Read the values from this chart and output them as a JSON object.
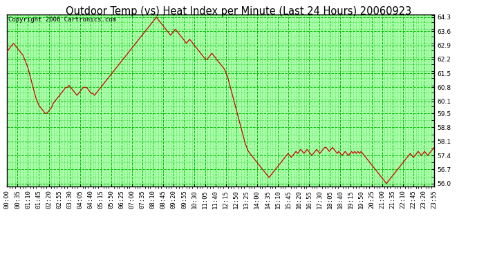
{
  "title": "Outdoor Temp (vs) Heat Index per Minute (Last 24 Hours) 20060923",
  "copyright": "Copyright 2006 Cartronics.com",
  "bg_color": "#ffffff",
  "plot_bg_color": "#aaffaa",
  "grid_major_color": "#00bb00",
  "grid_minor_color": "#00bb00",
  "line_color": "#cc0000",
  "title_fontsize": 10.5,
  "copyright_fontsize": 6.5,
  "tick_label_fontsize": 6.5,
  "y_ticks": [
    56.0,
    56.7,
    57.4,
    58.1,
    58.8,
    59.5,
    60.1,
    60.8,
    61.5,
    62.2,
    62.9,
    63.6,
    64.3
  ],
  "ylim": [
    55.85,
    64.45
  ],
  "x_tick_labels": [
    "00:00",
    "00:35",
    "01:10",
    "01:45",
    "02:20",
    "02:55",
    "03:30",
    "04:05",
    "04:40",
    "05:15",
    "05:50",
    "06:25",
    "07:00",
    "07:35",
    "08:10",
    "08:45",
    "09:20",
    "09:55",
    "10:30",
    "11:05",
    "11:40",
    "12:15",
    "12:50",
    "13:25",
    "14:00",
    "14:35",
    "15:10",
    "15:45",
    "16:20",
    "16:55",
    "17:30",
    "18:05",
    "18:40",
    "19:15",
    "19:50",
    "20:25",
    "21:00",
    "21:35",
    "22:10",
    "22:45",
    "23:20",
    "23:55"
  ],
  "data_y": [
    62.6,
    62.7,
    62.8,
    62.9,
    63.0,
    62.9,
    62.8,
    62.7,
    62.6,
    62.5,
    62.4,
    62.2,
    62.0,
    61.8,
    61.5,
    61.2,
    60.9,
    60.6,
    60.3,
    60.1,
    59.9,
    59.8,
    59.7,
    59.6,
    59.5,
    59.5,
    59.6,
    59.7,
    59.8,
    60.0,
    60.1,
    60.2,
    60.3,
    60.4,
    60.5,
    60.6,
    60.7,
    60.8,
    60.8,
    60.9,
    60.8,
    60.7,
    60.6,
    60.5,
    60.4,
    60.5,
    60.6,
    60.7,
    60.8,
    60.8,
    60.8,
    60.7,
    60.6,
    60.5,
    60.5,
    60.4,
    60.5,
    60.6,
    60.7,
    60.8,
    60.9,
    61.0,
    61.1,
    61.2,
    61.3,
    61.4,
    61.5,
    61.6,
    61.7,
    61.8,
    61.9,
    62.0,
    62.1,
    62.2,
    62.3,
    62.4,
    62.5,
    62.6,
    62.7,
    62.8,
    62.9,
    63.0,
    63.1,
    63.2,
    63.3,
    63.4,
    63.5,
    63.6,
    63.7,
    63.8,
    63.9,
    64.0,
    64.1,
    64.2,
    64.3,
    64.2,
    64.1,
    64.0,
    63.9,
    63.8,
    63.7,
    63.6,
    63.5,
    63.4,
    63.5,
    63.6,
    63.7,
    63.6,
    63.5,
    63.4,
    63.3,
    63.2,
    63.1,
    63.0,
    63.1,
    63.2,
    63.1,
    63.0,
    62.9,
    62.8,
    62.7,
    62.6,
    62.5,
    62.4,
    62.3,
    62.2,
    62.2,
    62.3,
    62.4,
    62.5,
    62.4,
    62.3,
    62.2,
    62.1,
    62.0,
    61.9,
    61.8,
    61.7,
    61.5,
    61.3,
    61.0,
    60.7,
    60.4,
    60.1,
    59.8,
    59.5,
    59.2,
    58.9,
    58.6,
    58.3,
    58.0,
    57.8,
    57.6,
    57.5,
    57.4,
    57.3,
    57.2,
    57.1,
    57.0,
    56.9,
    56.8,
    56.7,
    56.6,
    56.5,
    56.4,
    56.3,
    56.4,
    56.5,
    56.6,
    56.7,
    56.8,
    56.9,
    57.0,
    57.1,
    57.2,
    57.3,
    57.4,
    57.5,
    57.4,
    57.3,
    57.4,
    57.5,
    57.6,
    57.5,
    57.6,
    57.7,
    57.6,
    57.5,
    57.6,
    57.7,
    57.6,
    57.5,
    57.4,
    57.5,
    57.6,
    57.7,
    57.6,
    57.5,
    57.6,
    57.7,
    57.8,
    57.8,
    57.7,
    57.6,
    57.7,
    57.8,
    57.7,
    57.6,
    57.5,
    57.6,
    57.5,
    57.4,
    57.5,
    57.6,
    57.5,
    57.4,
    57.5,
    57.6,
    57.5,
    57.6,
    57.5,
    57.6,
    57.5,
    57.6,
    57.5,
    57.4,
    57.3,
    57.2,
    57.1,
    57.0,
    56.9,
    56.8,
    56.7,
    56.6,
    56.5,
    56.4,
    56.3,
    56.2,
    56.1,
    56.0,
    56.1,
    56.2,
    56.3,
    56.4,
    56.5,
    56.6,
    56.7,
    56.8,
    56.9,
    57.0,
    57.1,
    57.2,
    57.3,
    57.4,
    57.5,
    57.4,
    57.3,
    57.4,
    57.5,
    57.6,
    57.5,
    57.4,
    57.5,
    57.6,
    57.5,
    57.4,
    57.5,
    57.6,
    57.7,
    57.8
  ]
}
